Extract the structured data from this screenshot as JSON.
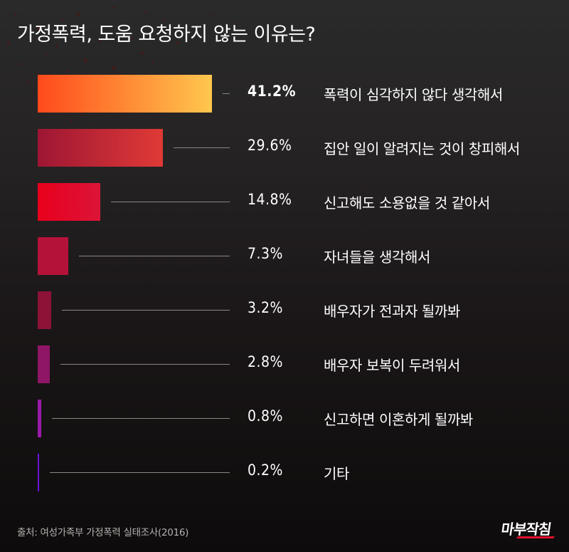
{
  "title": "가정폭력, 도움 요청하지 않는 이유는?",
  "chart_data": {
    "type": "bar",
    "orientation": "horizontal",
    "title": "가정폭력, 도움 요청하지 않는 이유는?",
    "xlabel": "",
    "ylabel": "",
    "unit": "%",
    "grid": false,
    "legend": null,
    "categories": [
      "폭력이 심각하지 않다 생각해서",
      "집안 일이 알려지는 것이 창피해서",
      "신고해도 소용없을 것 같아서",
      "자녀들을 생각해서",
      "배우자가 전과자 될까봐",
      "배우자 보복이 두려워서",
      "신고하면 이혼하게 될까봐",
      "기타"
    ],
    "values": [
      41.2,
      29.6,
      14.8,
      7.3,
      3.2,
      2.8,
      0.8,
      0.2
    ],
    "value_labels": [
      "41.2%",
      "29.6%",
      "14.8%",
      "7.3%",
      "3.2%",
      "2.8%",
      "0.8%",
      "0.2%"
    ],
    "source": "출처: 여성가족부 가정폭력 실태조사(2016)"
  },
  "rows": [
    {
      "pct": "41.2%",
      "label": "폭력이 심각하지 않다 생각해서",
      "value": 41.2,
      "color_start": "#ff4a1c",
      "color_end": "#ffc74e"
    },
    {
      "pct": "29.6%",
      "label": "집안 일이 알려지는 것이 창피해서",
      "value": 29.6,
      "color_start": "#9e1634",
      "color_end": "#e03a36"
    },
    {
      "pct": "14.8%",
      "label": "신고해도 소용없을 것 같아서",
      "value": 14.8,
      "color_start": "#e8001c",
      "color_end": "#dc1438"
    },
    {
      "pct": "7.3%",
      "label": "자녀들을 생각해서",
      "value": 7.3,
      "color_start": "#b5123a",
      "color_end": "#b5123a"
    },
    {
      "pct": "3.2%",
      "label": "배우자가 전과자 될까봐",
      "value": 3.2,
      "color_start": "#8c1238",
      "color_end": "#8c1238"
    },
    {
      "pct": "2.8%",
      "label": "배우자 보복이 두려워서",
      "value": 2.8,
      "color_start": "#8f1666",
      "color_end": "#8f1666"
    },
    {
      "pct": "0.8%",
      "label": "신고하면 이혼하게 될까봐",
      "value": 0.8,
      "color_start": "#9a1aa8",
      "color_end": "#9a1aa8"
    },
    {
      "pct": "0.2%",
      "label": "기타",
      "value": 0.2,
      "color_start": "#6a14d8",
      "color_end": "#6a14d8"
    }
  ],
  "footer": {
    "source": "출처: 여성가족부 가정폭력 실태조사(2016)",
    "logo_text": "마부작침",
    "logo_accent": "#e0122b"
  }
}
